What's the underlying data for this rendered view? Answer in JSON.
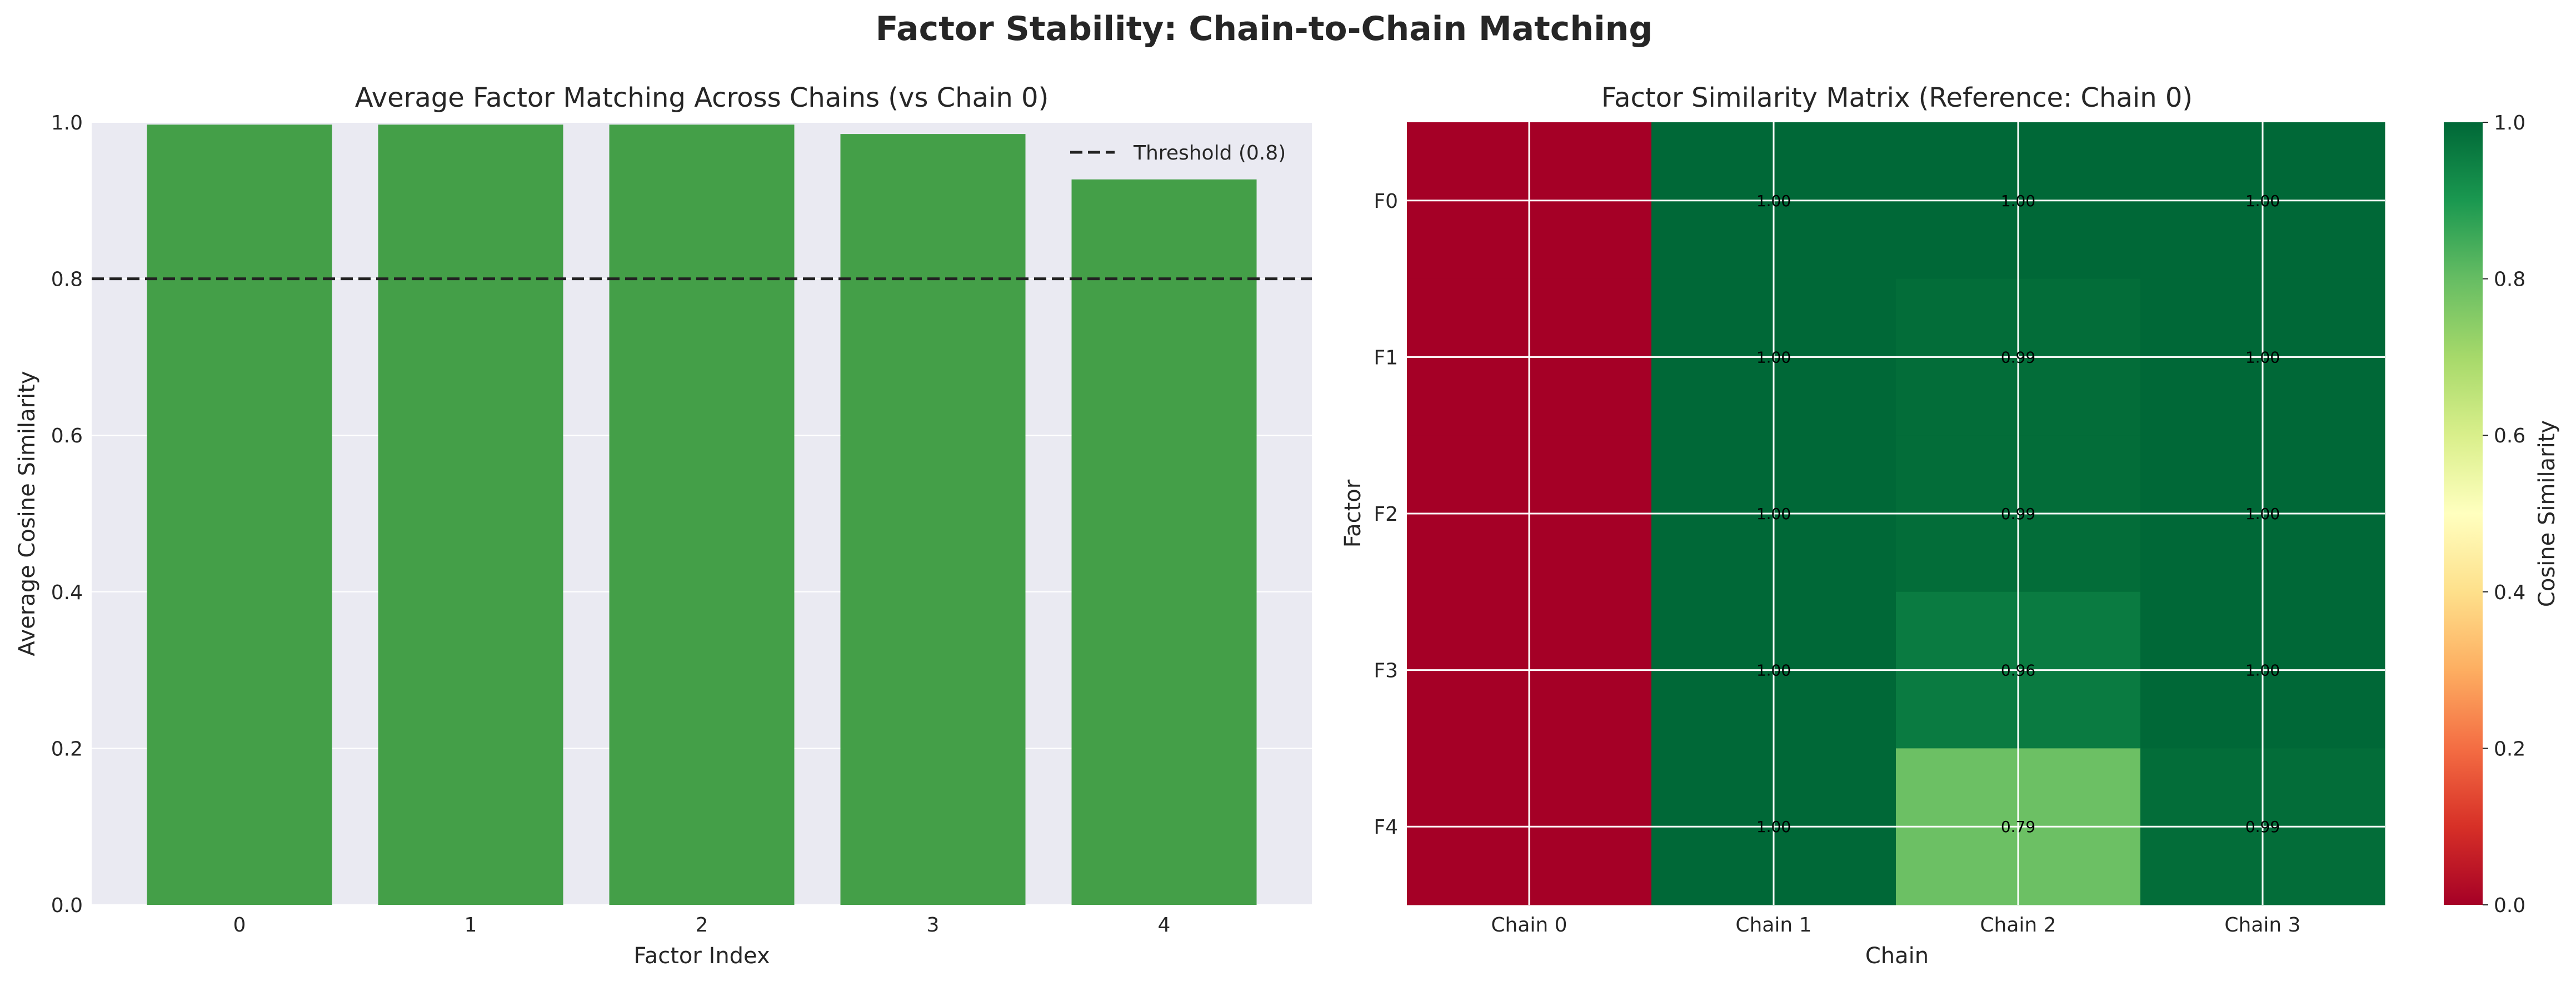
{
  "suptitle": "Factor Stability: Chain-to-Chain Matching",
  "colorbar": {
    "label": "Cosine Similarity",
    "ticks": [
      "0.0",
      "0.2",
      "0.4",
      "0.6",
      "0.8",
      "1.0"
    ],
    "colormap": "RdYlGn"
  },
  "colors": {
    "bar": "#449f48",
    "threshold": "#222222",
    "axes_bg": "#eaeaf2",
    "grid": "#ffffff"
  },
  "chart_data": [
    {
      "type": "bar",
      "title": "Average Factor Matching Across Chains (vs Chain 0)",
      "xlabel": "Factor Index",
      "ylabel": "Average Cosine Similarity",
      "categories": [
        "0",
        "1",
        "2",
        "3",
        "4"
      ],
      "values": [
        0.997,
        0.997,
        0.997,
        0.985,
        0.927
      ],
      "ylim": [
        0,
        1
      ],
      "yticks": [
        "0.0",
        "0.2",
        "0.4",
        "0.6",
        "0.8",
        "1.0"
      ],
      "reference_line": {
        "value": 0.8,
        "style": "dashed",
        "label": "Threshold (0.8)"
      },
      "legend": {
        "placement": "top-right",
        "entries": [
          "Threshold (0.8)"
        ]
      },
      "grid": true
    },
    {
      "type": "heatmap",
      "title": "Factor Similarity Matrix (Reference: Chain 0)",
      "xlabel": "Chain",
      "ylabel": "Factor",
      "columns": [
        "Chain 0",
        "Chain 1",
        "Chain 2",
        "Chain 3"
      ],
      "rows": [
        "F0",
        "F1",
        "F2",
        "F3",
        "F4"
      ],
      "values": [
        [
          0.0,
          1.0,
          1.0,
          1.0
        ],
        [
          0.0,
          1.0,
          0.99,
          1.0
        ],
        [
          0.0,
          1.0,
          0.99,
          1.0
        ],
        [
          0.0,
          1.0,
          0.96,
          1.0
        ],
        [
          0.0,
          1.0,
          0.79,
          0.99
        ]
      ],
      "annotations": [
        [
          null,
          "1.00",
          "1.00",
          "1.00"
        ],
        [
          null,
          "1.00",
          "0.99",
          "1.00"
        ],
        [
          null,
          "1.00",
          "0.99",
          "1.00"
        ],
        [
          null,
          "1.00",
          "0.96",
          "1.00"
        ],
        [
          null,
          "1.00",
          "0.79",
          "0.99"
        ]
      ],
      "vmin": 0,
      "vmax": 1,
      "grid": true
    }
  ]
}
